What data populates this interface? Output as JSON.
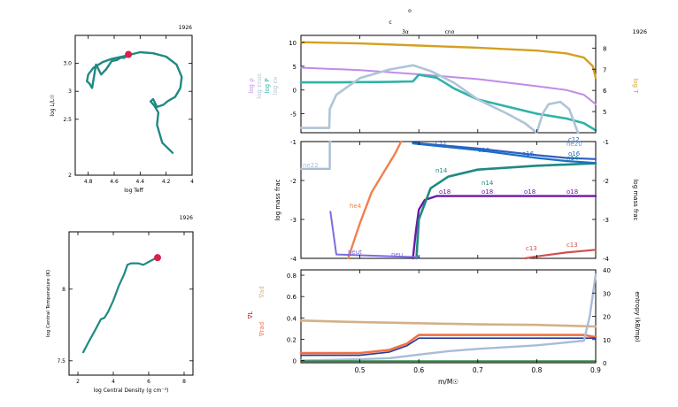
{
  "colors": {
    "teal": "#1f8a80",
    "red_dot": "#d8204c",
    "lgrho": "#c08ce8",
    "lgP": "#2fb3a8",
    "lgEnuc": "#b0c4d8",
    "lgT": "#d4a020",
    "gray_curve": "#b8c8d8",
    "he4": "#f08050",
    "c12": "#3060c0",
    "n14": "#1f8a80",
    "o16": "#1a70c8",
    "ne20": "#4fa0e0",
    "ne22": "#a8bcd4",
    "o18": "#6a18a8",
    "neut": "#7c6ce0",
    "c13": "#d05050",
    "grad_ad": "#d4b088",
    "grad_rad": "#f07040",
    "grad_L": "#2a3a9a",
    "entropy": "#a8bcd8",
    "green": "#2a8a40"
  },
  "hr_panel": {
    "corner_label": "1926",
    "xlabel": "log Teff",
    "ylabel": "log L/L☉",
    "x_ticks": [
      "4.8",
      "4.6",
      "4.4",
      "4.2",
      "4"
    ],
    "y_ticks": [
      "3.0",
      "3",
      "2.5",
      "2"
    ]
  },
  "tc_panel": {
    "corner_label": "1926",
    "xlabel": "log Central Density (g cm⁻³)",
    "ylabel": "log Central Temperature (K)",
    "x_ticks": [
      "2",
      "4",
      "6",
      "8"
    ],
    "y_ticks": [
      "8",
      "7.5"
    ]
  },
  "right_header": {
    "corner_label": "1926",
    "marks": [
      "c",
      "o",
      "3α",
      "cno"
    ]
  },
  "profile_top": {
    "y_left_ticks": [
      "10",
      "5",
      "0",
      "-5"
    ],
    "y_right_ticks": [
      "8",
      "7",
      "6",
      "5"
    ],
    "left_labels": [
      "log ρ",
      "log εnuc",
      "log P",
      "log εν"
    ],
    "right_label": "log T"
  },
  "profile_mid": {
    "ylabel_left": "log mass frac",
    "ylabel_right": "log mass frac",
    "y_ticks": [
      "-1",
      "-2",
      "-3",
      "-4"
    ],
    "labels": [
      "ne22",
      "he4",
      "neut",
      "neu",
      "n14",
      "n14",
      "o18",
      "o18",
      "o18",
      "o18",
      "c12",
      "o16",
      "o16",
      "o16",
      "n14",
      "ne20",
      "c12",
      "c13",
      "c13"
    ]
  },
  "profile_bot": {
    "y_left_ticks": [
      "0.8",
      "0.6",
      "0.4",
      "0.2",
      "0"
    ],
    "y_right_ticks": [
      "40",
      "30",
      "20",
      "10",
      "0"
    ],
    "x_ticks": [
      "0.5",
      "0.6",
      "0.7",
      "0.8",
      "0.9"
    ],
    "xlabel": "m/M☉",
    "ylabel_right": "entropy (kB/mp)",
    "left_labels": [
      "∇ad",
      "∇L",
      "∇rad"
    ]
  },
  "chart_data": [
    {
      "type": "line",
      "panel": "hr",
      "xlabel": "log Teff",
      "ylabel": "log L/L☉",
      "xlim": [
        4.9,
        4.0
      ],
      "ylim": [
        2.0,
        3.25
      ],
      "series": [
        {
          "x": [
            4.15,
            4.23,
            4.27,
            4.26,
            4.29,
            4.32,
            4.3,
            4.27,
            4.22,
            4.19,
            4.13,
            4.09,
            4.08,
            4.12,
            4.2,
            4.3,
            4.4,
            4.47,
            4.54,
            4.62,
            4.69,
            4.76,
            4.8,
            4.81,
            4.79,
            4.77,
            4.75,
            4.74,
            4.7,
            4.66,
            4.62,
            4.58,
            4.55,
            4.52,
            4.49
          ],
          "y": [
            2.2,
            2.29,
            2.45,
            2.56,
            2.62,
            2.66,
            2.68,
            2.61,
            2.63,
            2.66,
            2.7,
            2.78,
            2.88,
            2.99,
            3.06,
            3.09,
            3.1,
            3.08,
            3.06,
            3.04,
            3.01,
            2.96,
            2.9,
            2.84,
            2.82,
            2.78,
            2.92,
            2.99,
            2.9,
            2.95,
            3.02,
            3.03,
            3.05,
            3.05,
            3.08
          ]
        }
      ],
      "marker": {
        "x": 4.49,
        "y": 3.08
      }
    },
    {
      "type": "line",
      "panel": "tc_rhoc",
      "xlabel": "log Central Density (g cm⁻³)",
      "ylabel": "log Central Temperature (K)",
      "xlim": [
        1.5,
        8.5
      ],
      "ylim": [
        7.4,
        8.4
      ],
      "series": [
        {
          "x": [
            2.3,
            2.6,
            3.0,
            3.3,
            3.5,
            3.7,
            4.0,
            4.3,
            4.6,
            4.8,
            5.0,
            5.4,
            5.7,
            6.0,
            6.3,
            6.5
          ],
          "y": [
            7.56,
            7.63,
            7.72,
            7.79,
            7.8,
            7.84,
            7.92,
            8.02,
            8.1,
            8.17,
            8.18,
            8.18,
            8.17,
            8.19,
            8.21,
            8.22
          ]
        }
      ],
      "marker": {
        "x": 6.5,
        "y": 8.22
      }
    },
    {
      "type": "line",
      "panel": "profile_top",
      "xlim": [
        0.4,
        0.9
      ],
      "ylim": [
        -9,
        11.5
      ],
      "y2lim": [
        4.0,
        8.6
      ],
      "series": [
        {
          "name": "log T",
          "axis": "right",
          "x": [
            0.4,
            0.5,
            0.6,
            0.7,
            0.8,
            0.85,
            0.88,
            0.895,
            0.9
          ],
          "y": [
            8.28,
            8.22,
            8.12,
            8.02,
            7.88,
            7.75,
            7.55,
            7.15,
            6.6
          ]
        },
        {
          "name": "log ρ",
          "axis": "left",
          "x": [
            0.4,
            0.5,
            0.6,
            0.7,
            0.8,
            0.85,
            0.88,
            0.9
          ],
          "y": [
            4.7,
            4.2,
            3.3,
            2.3,
            0.8,
            0.0,
            -1.0,
            -3.0
          ]
        },
        {
          "name": "log P",
          "axis": "left",
          "x": [
            0.4,
            0.45,
            0.55,
            0.59,
            0.6,
            0.63,
            0.66,
            0.7,
            0.75,
            0.8,
            0.85,
            0.88,
            0.9
          ],
          "y": [
            1.6,
            1.6,
            1.7,
            1.8,
            3.2,
            2.6,
            0.3,
            -2.0,
            -3.5,
            -5.0,
            -6.0,
            -7.0,
            -8.5
          ]
        },
        {
          "name": "log εν",
          "axis": "left",
          "x": [
            0.4,
            0.448,
            0.449,
            0.46,
            0.5,
            0.55,
            0.59,
            0.62,
            0.66,
            0.7,
            0.75,
            0.78,
            0.8,
            0.81,
            0.82,
            0.84,
            0.855,
            0.87
          ],
          "y": [
            -8.0,
            -8.0,
            -4.0,
            -1.0,
            2.5,
            4.3,
            5.2,
            4.0,
            1.5,
            -2.0,
            -5.0,
            -7.0,
            -9.0,
            -5.0,
            -3.0,
            -2.5,
            -4.0,
            -9.0
          ]
        }
      ]
    },
    {
      "type": "line",
      "panel": "profile_mid",
      "xlim": [
        0.4,
        0.9
      ],
      "ylim": [
        -4,
        -1
      ],
      "series": [
        {
          "name": "ne22",
          "x": [
            0.4,
            0.449,
            0.449,
            0.45
          ],
          "y": [
            -1.7,
            -1.7,
            -1.0,
            -1.0
          ]
        },
        {
          "name": "he4",
          "x": [
            0.48,
            0.5,
            0.52,
            0.54,
            0.56,
            0.57
          ],
          "y": [
            -4.0,
            -3.1,
            -2.3,
            -1.8,
            -1.3,
            -1.0
          ]
        },
        {
          "name": "o18",
          "x": [
            0.59,
            0.595,
            0.6,
            0.61,
            0.63,
            0.9
          ],
          "y": [
            -4.0,
            -3.3,
            -2.75,
            -2.5,
            -2.4,
            -2.4
          ]
        },
        {
          "name": "n14",
          "x": [
            0.596,
            0.6,
            0.62,
            0.65,
            0.7,
            0.8,
            0.9
          ],
          "y": [
            -4.0,
            -3.0,
            -2.2,
            -1.9,
            -1.72,
            -1.62,
            -1.56
          ]
        },
        {
          "name": "c12",
          "x": [
            0.59,
            0.7,
            0.8,
            0.85,
            0.9
          ],
          "y": [
            -1.03,
            -1.18,
            -1.35,
            -1.42,
            -1.45
          ]
        },
        {
          "name": "o16",
          "x": [
            0.59,
            0.7,
            0.8,
            0.85,
            0.9
          ],
          "y": [
            -1.05,
            -1.22,
            -1.42,
            -1.5,
            -1.55
          ]
        },
        {
          "name": "neut",
          "x": [
            0.45,
            0.46,
            0.6,
            0.6
          ],
          "y": [
            -2.8,
            -3.9,
            -3.97,
            -4.0
          ]
        },
        {
          "name": "c13",
          "x": [
            0.78,
            0.8,
            0.85,
            0.9
          ],
          "y": [
            -4.0,
            -3.95,
            -3.85,
            -3.78
          ]
        }
      ]
    },
    {
      "type": "line",
      "panel": "profile_bot",
      "xlim": [
        0.4,
        0.9
      ],
      "ylim": [
        -0.02,
        0.85
      ],
      "y2lim": [
        0,
        40
      ],
      "series": [
        {
          "name": "∇ad",
          "axis": "left",
          "x": [
            0.4,
            0.5,
            0.6,
            0.7,
            0.8,
            0.9
          ],
          "y": [
            0.375,
            0.36,
            0.35,
            0.34,
            0.335,
            0.32
          ]
        },
        {
          "name": "∇rad",
          "axis": "left",
          "x": [
            0.4,
            0.5,
            0.55,
            0.58,
            0.6,
            0.62,
            0.7,
            0.8,
            0.88,
            0.9
          ],
          "y": [
            0.07,
            0.07,
            0.1,
            0.16,
            0.24,
            0.24,
            0.24,
            0.24,
            0.24,
            0.22
          ]
        },
        {
          "name": "∇L",
          "axis": "left",
          "x": [
            0.4,
            0.5,
            0.55,
            0.58,
            0.6,
            0.7,
            0.8,
            0.9
          ],
          "y": [
            0.05,
            0.05,
            0.08,
            0.14,
            0.21,
            0.21,
            0.21,
            0.21
          ]
        },
        {
          "name": "entropy",
          "axis": "right",
          "x": [
            0.4,
            0.5,
            0.55,
            0.6,
            0.65,
            0.7,
            0.8,
            0.88,
            0.89,
            0.9
          ],
          "y": [
            1.0,
            1.5,
            2.0,
            3.5,
            5.0,
            6.0,
            7.5,
            9.5,
            20.0,
            38.0
          ]
        },
        {
          "name": "green",
          "axis": "left",
          "x": [
            0.4,
            0.9
          ],
          "y": [
            -0.005,
            -0.005
          ]
        }
      ]
    }
  ]
}
